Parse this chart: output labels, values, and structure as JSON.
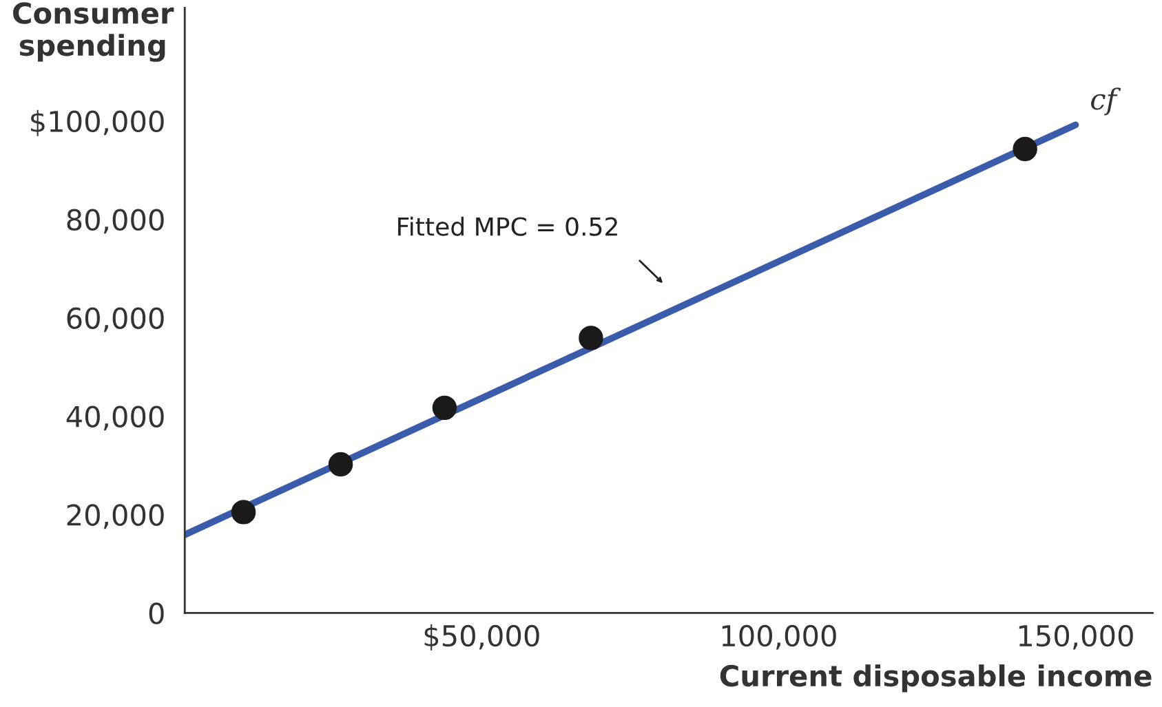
{
  "chart_data": {
    "type": "scatter",
    "xlabel": "Current disposable income",
    "ylabel": "Consumer\nspending",
    "xlim": [
      0,
      163000
    ],
    "ylim": [
      0,
      123000
    ],
    "xticks": [
      {
        "value": 50000,
        "label": "$50,000"
      },
      {
        "value": 100000,
        "label": "100,000"
      },
      {
        "value": 150000,
        "label": "150,000"
      }
    ],
    "yticks": [
      {
        "value": 0,
        "label": "0"
      },
      {
        "value": 20000,
        "label": "20,000"
      },
      {
        "value": 40000,
        "label": "40,000"
      },
      {
        "value": 60000,
        "label": "60,000"
      },
      {
        "value": 80000,
        "label": "80,000"
      },
      {
        "value": 100000,
        "label": "$100,000"
      }
    ],
    "grid": false,
    "legend": false,
    "series": [
      {
        "type": "line",
        "name": "cf",
        "color": "#3b5bab",
        "x": [
          0,
          150000
        ],
        "values": [
          15900,
          99200
        ]
      },
      {
        "color": "#1a1a1a",
        "marker": "circle",
        "x": [
          9900,
          26250,
          43750,
          68400,
          141500
        ],
        "values": [
          20500,
          30200,
          41700,
          55900,
          94300
        ]
      }
    ],
    "annotations": [
      "Fitted MPC = 0.52"
    ]
  }
}
